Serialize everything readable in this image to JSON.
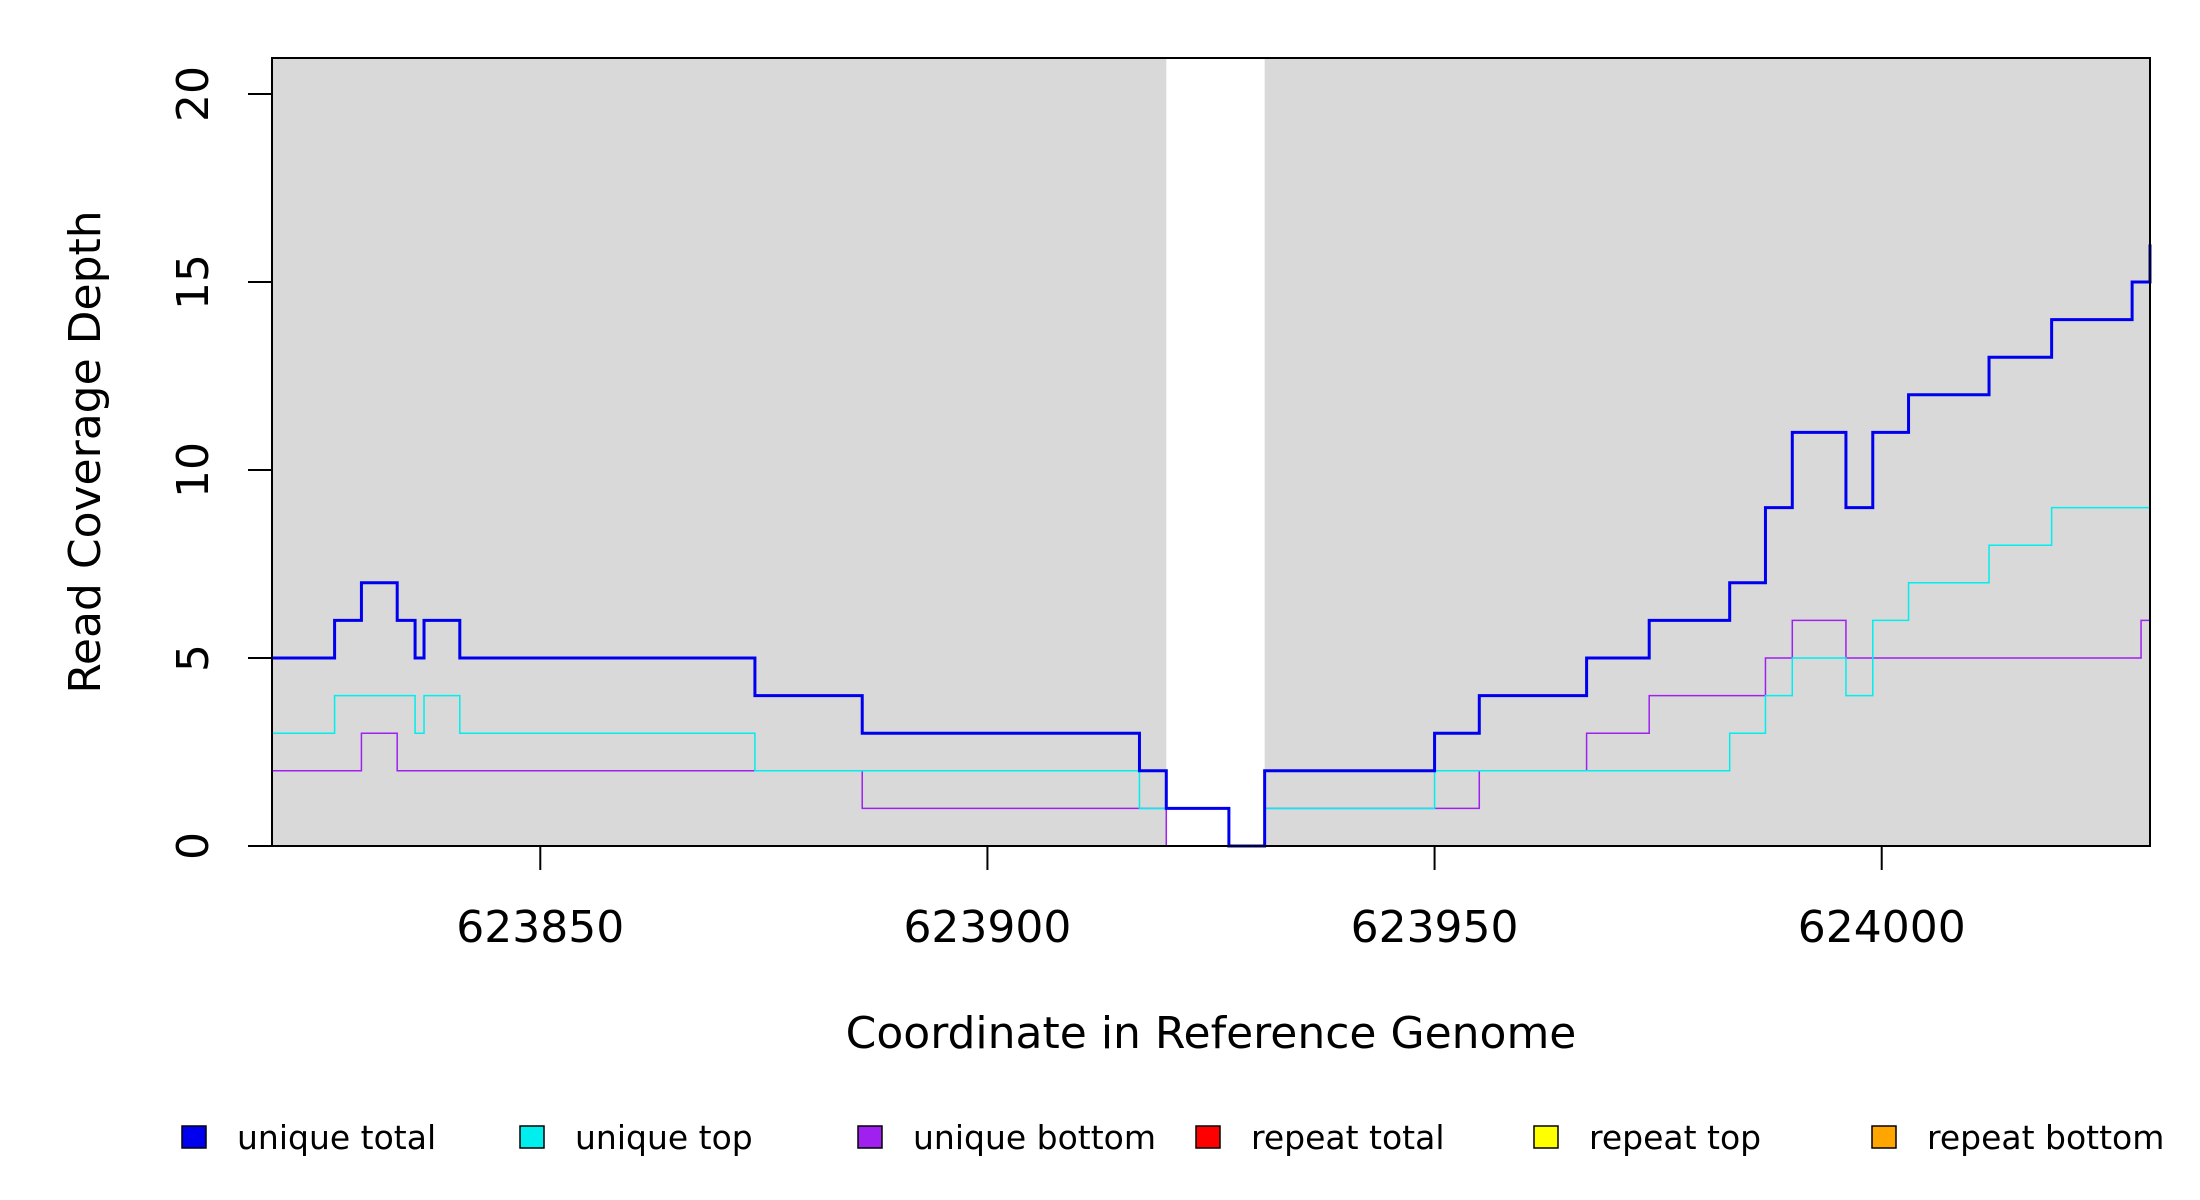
{
  "chart_data": {
    "type": "line",
    "step": true,
    "xlabel": "Coordinate in Reference Genome",
    "ylabel": "Read Coverage Depth",
    "xlim": [
      623820,
      624030
    ],
    "ylim": [
      0,
      21
    ],
    "x_ticks": [
      623850,
      623900,
      623950,
      624000
    ],
    "x_tick_labels": [
      "623850",
      "623900",
      "623950",
      "624000"
    ],
    "y_ticks": [
      0,
      5,
      10,
      15,
      20
    ],
    "y_tick_labels": [
      "0",
      "5",
      "10",
      "15",
      "20"
    ],
    "background_color": "#d9d9d9",
    "unshaded_region": [
      623920,
      623931
    ],
    "legend_position": "bottom",
    "series": [
      {
        "name": "unique total",
        "color": "#0000ee",
        "weight": "bold",
        "steps": [
          [
            623820,
            5
          ],
          [
            623827,
            6
          ],
          [
            623830,
            7
          ],
          [
            623834,
            6
          ],
          [
            623836,
            5
          ],
          [
            623837,
            6
          ],
          [
            623841,
            5
          ],
          [
            623874,
            4
          ],
          [
            623886,
            3
          ],
          [
            623917,
            2
          ],
          [
            623920,
            1
          ],
          [
            623927,
            0
          ],
          [
            623931,
            2
          ],
          [
            623950,
            3
          ],
          [
            623955,
            4
          ],
          [
            623967,
            5
          ],
          [
            623974,
            6
          ],
          [
            623983,
            7
          ],
          [
            623987,
            9
          ],
          [
            623990,
            11
          ],
          [
            623996,
            9
          ],
          [
            623999,
            11
          ],
          [
            624003,
            12
          ],
          [
            624012,
            13
          ],
          [
            624019,
            14
          ],
          [
            624028,
            15
          ],
          [
            624030,
            16
          ]
        ],
        "end": 624030
      },
      {
        "name": "unique top",
        "color": "#00eeee",
        "weight": "thin",
        "steps": [
          [
            623820,
            3
          ],
          [
            623827,
            4
          ],
          [
            623836,
            3
          ],
          [
            623837,
            4
          ],
          [
            623841,
            3
          ],
          [
            623874,
            2
          ],
          [
            623917,
            1
          ],
          [
            623927,
            0
          ],
          [
            623931,
            1
          ],
          [
            623950,
            2
          ],
          [
            623983,
            3
          ],
          [
            623987,
            4
          ],
          [
            623990,
            5
          ],
          [
            623996,
            4
          ],
          [
            623999,
            6
          ],
          [
            624003,
            7
          ],
          [
            624012,
            8
          ],
          [
            624019,
            9
          ],
          [
            624030,
            10
          ]
        ],
        "end": 624030
      },
      {
        "name": "unique bottom",
        "color": "#a020f0",
        "weight": "thin",
        "steps": [
          [
            623820,
            2
          ],
          [
            623830,
            3
          ],
          [
            623834,
            2
          ],
          [
            623886,
            1
          ],
          [
            623920,
            0
          ],
          [
            623931,
            1
          ],
          [
            623955,
            2
          ],
          [
            623967,
            3
          ],
          [
            623974,
            4
          ],
          [
            623987,
            5
          ],
          [
            623990,
            6
          ],
          [
            623996,
            5
          ],
          [
            624029,
            6
          ]
        ],
        "end": 624030
      },
      {
        "name": "repeat total",
        "color": "#ff0000",
        "weight": "thin",
        "steps": [
          [
            623820,
            0
          ]
        ],
        "end": 624030
      },
      {
        "name": "repeat top",
        "color": "#ffff00",
        "weight": "thin",
        "steps": [
          [
            623820,
            0
          ]
        ],
        "end": 624030
      },
      {
        "name": "repeat bottom",
        "color": "#ffa500",
        "weight": "thin",
        "steps": [
          [
            623820,
            0
          ]
        ],
        "end": 624030
      }
    ]
  }
}
